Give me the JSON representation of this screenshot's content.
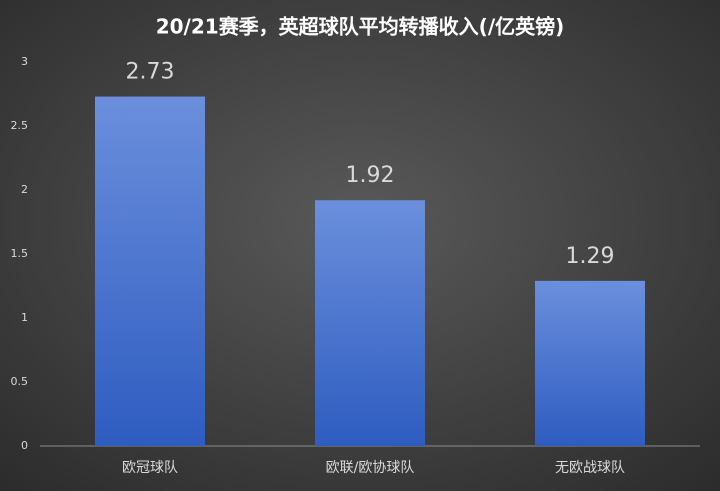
{
  "chart_data": {
    "type": "bar",
    "title": "20/21赛季，英超球队平均转播收入(/亿英镑)",
    "categories": [
      "欧冠球队",
      "欧联/欧协球队",
      "无欧战球队"
    ],
    "values": [
      2.73,
      1.92,
      1.29
    ],
    "color": "#4472c4",
    "ylim": [
      0,
      3
    ],
    "yticks": [
      0,
      0.5,
      1,
      1.5,
      2,
      2.5,
      3
    ],
    "grid": false
  }
}
